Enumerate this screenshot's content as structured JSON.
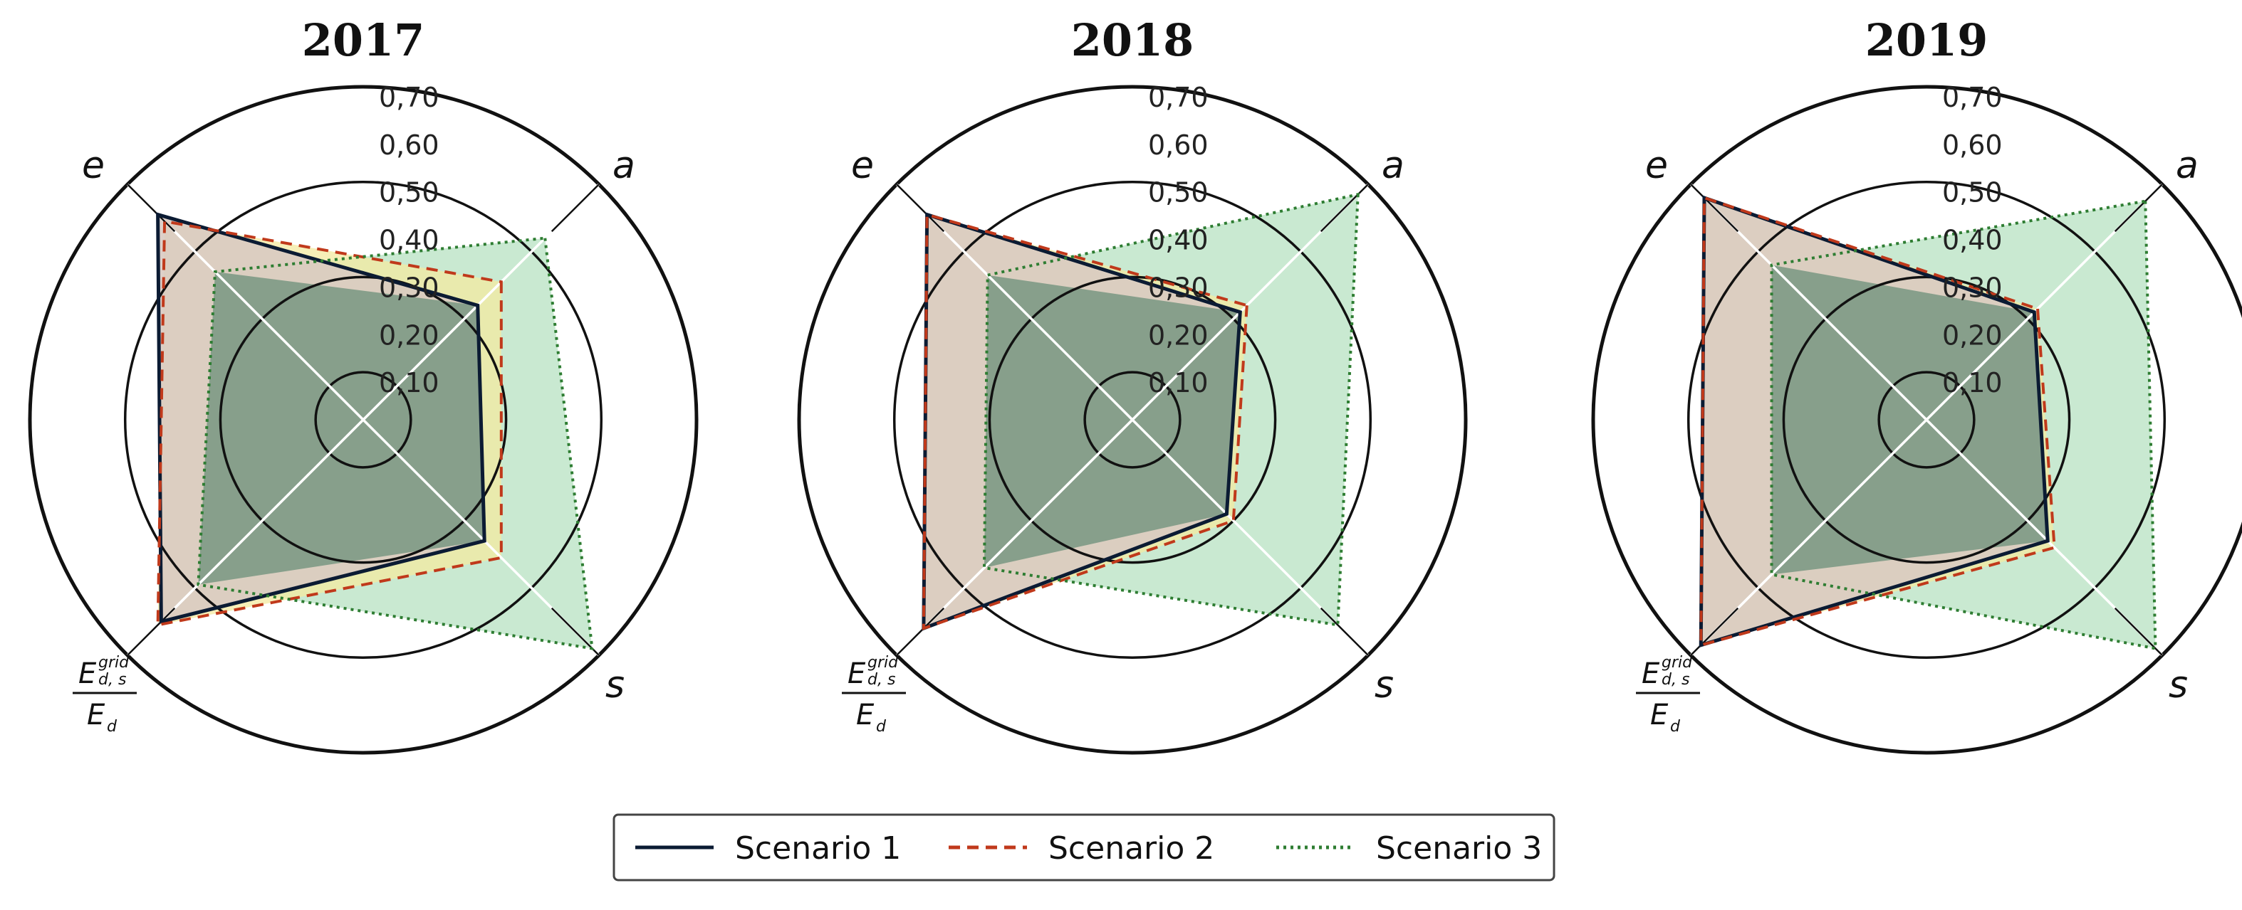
{
  "chart_data": [
    {
      "type": "radar",
      "title": "2017",
      "axes": [
        "a",
        "s",
        "E_d,s^grid / E_d",
        "e"
      ],
      "radial_ticks": [
        "0,10",
        "0,20",
        "0,30",
        "0,40",
        "0,50",
        "0,60",
        "0,70"
      ],
      "rlim": [
        0,
        0.7
      ],
      "series": [
        {
          "name": "Scenario 1",
          "values": [
            0.34,
            0.36,
            0.6,
            0.61
          ]
        },
        {
          "name": "Scenario 2",
          "values": [
            0.41,
            0.41,
            0.61,
            0.59
          ]
        },
        {
          "name": "Scenario 3",
          "values": [
            0.54,
            0.68,
            0.49,
            0.44
          ]
        }
      ]
    },
    {
      "type": "radar",
      "title": "2018",
      "axes": [
        "a",
        "s",
        "E_d,s^grid / E_d",
        "e"
      ],
      "radial_ticks": [
        "0,10",
        "0,20",
        "0,30",
        "0,40",
        "0,50",
        "0,60",
        "0,70"
      ],
      "rlim": [
        0,
        0.7
      ],
      "series": [
        {
          "name": "Scenario 1",
          "values": [
            0.32,
            0.28,
            0.62,
            0.61
          ]
        },
        {
          "name": "Scenario 2",
          "values": [
            0.34,
            0.3,
            0.62,
            0.61
          ]
        },
        {
          "name": "Scenario 3",
          "values": [
            0.67,
            0.61,
            0.44,
            0.43
          ]
        }
      ]
    },
    {
      "type": "radar",
      "title": "2019",
      "axes": [
        "a",
        "s",
        "E_d,s^grid / E_d",
        "e"
      ],
      "radial_ticks": [
        "0,10",
        "0,20",
        "0,30",
        "0,40",
        "0,50",
        "0,60",
        "0,70"
      ],
      "rlim": [
        0,
        0.7
      ],
      "series": [
        {
          "name": "Scenario 1",
          "values": [
            0.32,
            0.36,
            0.67,
            0.66
          ]
        },
        {
          "name": "Scenario 2",
          "values": [
            0.33,
            0.38,
            0.67,
            0.66
          ]
        },
        {
          "name": "Scenario 3",
          "values": [
            0.65,
            0.68,
            0.46,
            0.46
          ]
        }
      ]
    }
  ],
  "axis_labels": {
    "a": "a",
    "s": "s",
    "e": "e",
    "frac_E": "E",
    "frac_sub": "d, s",
    "frac_sup": "grid",
    "frac_den_E": "E",
    "frac_den_sub": "d"
  },
  "legend": {
    "placement": "bottom-center",
    "items": [
      {
        "label": "Scenario 1",
        "style": "solid",
        "color": "#0b1b33"
      },
      {
        "label": "Scenario 2",
        "style": "dashed",
        "color": "#c0391b"
      },
      {
        "label": "Scenario 3",
        "style": "dotted",
        "color": "#2e7d32"
      }
    ]
  },
  "colors": {
    "scenario1_fill": "#c7e9c7",
    "scenario2_fill": "#f3e9a0",
    "scenario3_fill": "#b7e2c2",
    "overlap_e_side": "#e3b6c0",
    "core": "#7d9a85",
    "grid": "#111111"
  }
}
